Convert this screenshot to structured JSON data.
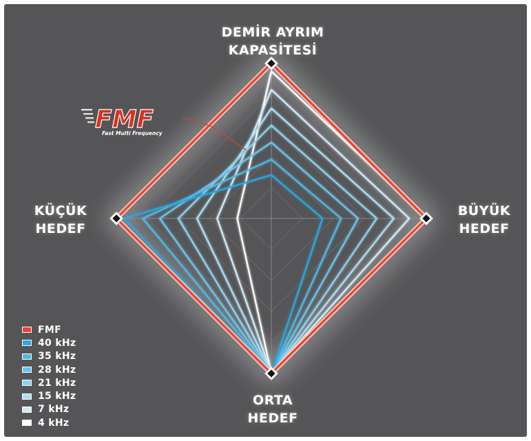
{
  "chart_data": {
    "type": "radar",
    "axes": [
      {
        "id": "top",
        "label_lines": [
          "DEMİR AYRIM",
          "KAPASİTESİ"
        ]
      },
      {
        "id": "right",
        "label_lines": [
          "BÜYÜK",
          "HEDEF"
        ]
      },
      {
        "id": "bottom",
        "label_lines": [
          "ORTA",
          "HEDEF"
        ]
      },
      {
        "id": "left",
        "label_lines": [
          "KÜÇÜK",
          "HEDEF"
        ]
      }
    ],
    "scale_max": 100,
    "series": [
      {
        "name": "FMF",
        "color": "#e8452e",
        "values": {
          "top": 100,
          "right": 100,
          "bottom": 100,
          "left": 100
        }
      },
      {
        "name": "40 kHz",
        "color": "#2aa6e0",
        "values": {
          "top": 28,
          "right": 33,
          "bottom": 100,
          "left": 95
        }
      },
      {
        "name": "35 kHz",
        "color": "#4fb8e6",
        "values": {
          "top": 38,
          "right": 45,
          "bottom": 100,
          "left": 83
        }
      },
      {
        "name": "28 kHz",
        "color": "#6cc4ea",
        "values": {
          "top": 49,
          "right": 56,
          "bottom": 100,
          "left": 72
        }
      },
      {
        "name": "21 kHz",
        "color": "#8ed2ef",
        "values": {
          "top": 60,
          "right": 68,
          "bottom": 100,
          "left": 60
        }
      },
      {
        "name": "15 kHz",
        "color": "#aedff4",
        "values": {
          "top": 71,
          "right": 79,
          "bottom": 100,
          "left": 48
        }
      },
      {
        "name": "7 kHz",
        "color": "#d0ecf9",
        "values": {
          "top": 83,
          "right": 89,
          "bottom": 100,
          "left": 35
        }
      },
      {
        "name": "4 kHz",
        "color": "#ffffff",
        "values": {
          "top": 95,
          "right": 100,
          "bottom": 100,
          "left": 22
        }
      }
    ],
    "grid": true
  },
  "logo": {
    "text": "FMF",
    "subtitle": "Fast Multi Frequency",
    "color": "#d9321f"
  },
  "legend": [
    {
      "label": "FMF",
      "color": "#e8452e"
    },
    {
      "label": "40 kHz",
      "color": "#2aa6e0"
    },
    {
      "label": "35 kHz",
      "color": "#4fb8e6"
    },
    {
      "label": "28 kHz",
      "color": "#6cc4ea"
    },
    {
      "label": "21 kHz",
      "color": "#8ed2ef"
    },
    {
      "label": "15 kHz",
      "color": "#aedff4"
    },
    {
      "label": "7 kHz",
      "color": "#d0ecf9"
    },
    {
      "label": "4 kHz",
      "color": "#ffffff"
    }
  ]
}
